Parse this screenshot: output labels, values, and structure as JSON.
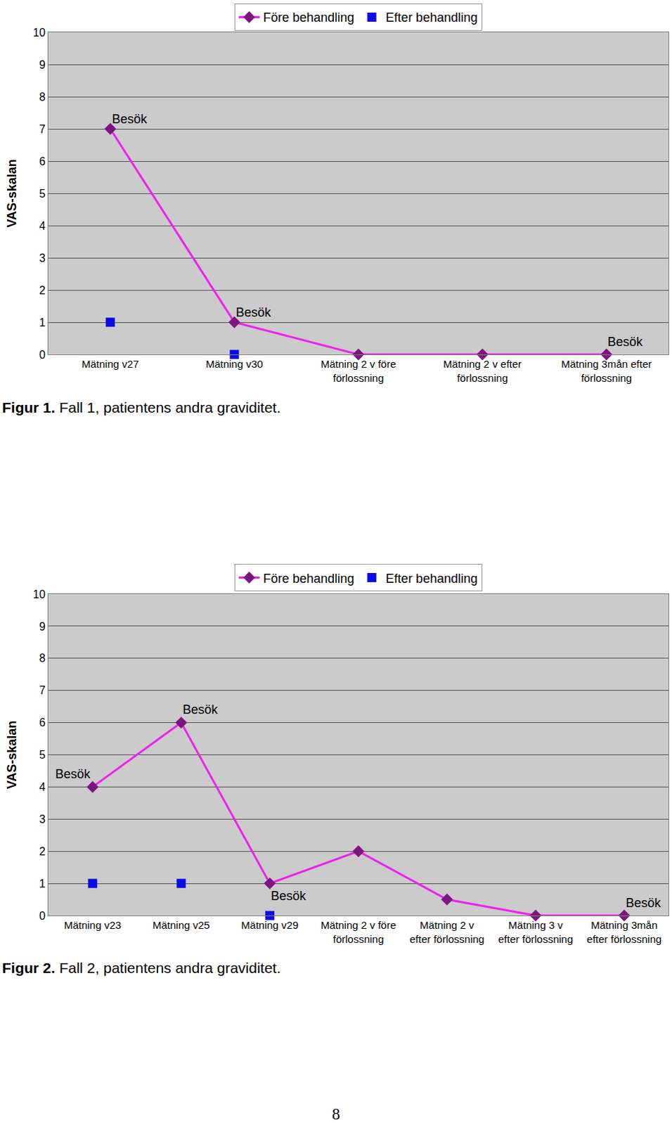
{
  "chart_data": [
    {
      "type": "line",
      "y_label": "VAS-skalan",
      "categories": [
        "Mätning v27",
        "Mätning v30",
        "Mätning 2 v före\nförlossning",
        "Mätning 2 v efter\nförlossning",
        "Mätning 3mån efter\nförlossning"
      ],
      "series": [
        {
          "name": "Före behandling",
          "color": "#ee22ee",
          "marker": "diamond",
          "line_style": "solid",
          "values": [
            7,
            1,
            0,
            0,
            0
          ]
        },
        {
          "name": "Efter behandling",
          "color": "#0a0ae6",
          "marker": "square",
          "line_style": "none",
          "values": [
            1,
            0,
            null,
            null,
            null
          ]
        }
      ],
      "annotations": [
        {
          "text": "Besök",
          "category": 0,
          "y": 7.3
        },
        {
          "text": "Besök",
          "category": 1,
          "y": 1.3
        },
        {
          "text": "Besök",
          "category": 4,
          "y": 0.4
        }
      ],
      "ylim": [
        0,
        10
      ],
      "yticks": [
        0,
        1,
        2,
        3,
        4,
        5,
        6,
        7,
        8,
        9,
        10
      ],
      "grid": true,
      "legend": "top",
      "caption": {
        "label": "Figur 1.",
        "text": "Fall 1, patientens andra graviditet."
      }
    },
    {
      "type": "line",
      "y_label": "VAS-skalan",
      "categories": [
        "Mätning v23",
        "Mätning v25",
        "Mätning v29",
        "Mätning 2 v före\nförlossning",
        "Mätning 2 v\nefter förlossning",
        "Mätning 3 v\nefter förlossning",
        "Mätning 3mån\nefter förlossning"
      ],
      "series": [
        {
          "name": "Före behandling",
          "color": "#ee22ee",
          "marker": "diamond",
          "line_style": "solid",
          "values": [
            4,
            6,
            1,
            2,
            0.5,
            0,
            0
          ]
        },
        {
          "name": "Efter behandling",
          "color": "#0a0ae6",
          "marker": "square",
          "line_style": "none",
          "values": [
            1,
            1,
            0,
            null,
            null,
            null,
            null
          ]
        }
      ],
      "annotations": [
        {
          "text": "Besök",
          "category": 0,
          "y": 4.4
        },
        {
          "text": "Besök",
          "category": 1,
          "y": 6.4
        },
        {
          "text": "Besök",
          "category": 2,
          "y": 0.6
        },
        {
          "text": "Besök",
          "category": 6,
          "y": 0.4
        }
      ],
      "ylim": [
        0,
        10
      ],
      "yticks": [
        0,
        1,
        2,
        3,
        4,
        5,
        6,
        7,
        8,
        9,
        10
      ],
      "grid": true,
      "legend": "top",
      "caption": {
        "label": "Figur 2.",
        "text": "Fall 2, patientens andra graviditet."
      }
    }
  ],
  "page_number": "8"
}
